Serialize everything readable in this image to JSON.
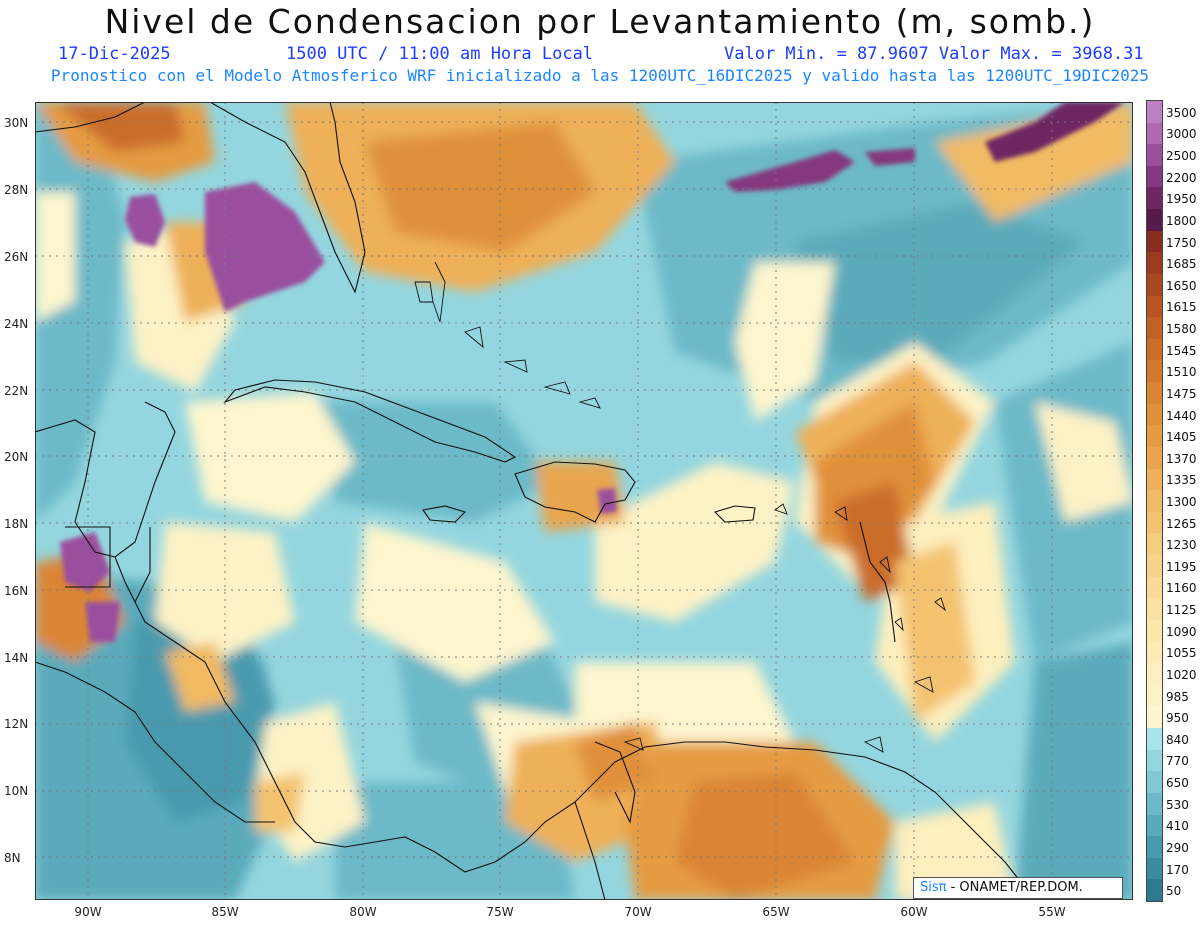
{
  "header": {
    "title": "Nivel de Condensacion por Levantamiento (m, somb.)",
    "date": "17-Dic-2025",
    "time": "1500 UTC / 11:00 am Hora Local",
    "minmax": "Valor Min. = 87.9607  Valor Max. = 3968.31",
    "model_line": "Pronostico con el Modelo Atmosferico WRF inicializado a las 1200UTC_16DIC2025 y valido hasta las  1200UTC_19DIC2025"
  },
  "axes": {
    "lat_labels": [
      "30N",
      "28N",
      "26N",
      "24N",
      "22N",
      "20N",
      "18N",
      "16N",
      "14N",
      "12N",
      "10N",
      "8N"
    ],
    "lon_labels": [
      "90W",
      "85W",
      "80W",
      "75W",
      "70W",
      "65W",
      "60W",
      "55W"
    ]
  },
  "legend": {
    "labels": [
      "3500",
      "3000",
      "2500",
      "2200",
      "1950",
      "1800",
      "1750",
      "1685",
      "1650",
      "1615",
      "1580",
      "1545",
      "1510",
      "1475",
      "1440",
      "1405",
      "1370",
      "1335",
      "1300",
      "1265",
      "1230",
      "1195",
      "1160",
      "1125",
      "1090",
      "1055",
      "1020",
      "985",
      "950",
      "840",
      "770",
      "650",
      "530",
      "410",
      "290",
      "170",
      "50"
    ],
    "colors": [
      "#bf7fc4",
      "#b068b6",
      "#9a4f9e",
      "#85387f",
      "#6e2763",
      "#581a4a",
      "#8a2d1e",
      "#9a3a1f",
      "#a9471f",
      "#b75421",
      "#c26125",
      "#cb6d29",
      "#d3792e",
      "#da8534",
      "#e0903b",
      "#e59b43",
      "#e9a54d",
      "#eeb058",
      "#f1ba64",
      "#f4c371",
      "#f6cc7e",
      "#f8d48b",
      "#f9db97",
      "#fae1a2",
      "#fbe6ac",
      "#fcebb5",
      "#fdefbe",
      "#fdf2c6",
      "#fdf5ce",
      "#a8e4ea",
      "#94d6df",
      "#80c8d4",
      "#6cb9c8",
      "#5aaabb",
      "#4a9aae",
      "#3c8a9f",
      "#2e7a90"
    ]
  },
  "credit": {
    "brand": "Sisπ",
    "org": " - ONAMET/REP.DOM."
  }
}
